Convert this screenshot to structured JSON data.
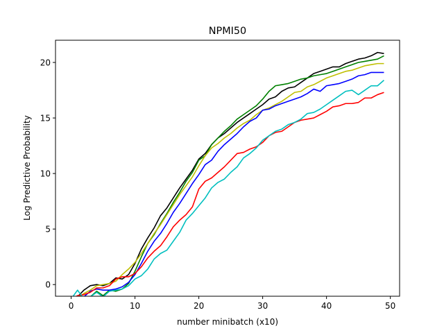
{
  "chart_data": {
    "type": "line",
    "title": "NPMI50",
    "xlabel": "number minibatch (x10)",
    "ylabel": "Log Predictive Probability",
    "xlim": [
      -2.45,
      51.45
    ],
    "ylim": [
      -1.05,
      22.0
    ],
    "xticks": [
      0,
      10,
      20,
      30,
      40,
      50
    ],
    "yticks": [
      0,
      5,
      10,
      15,
      20
    ],
    "grid": false,
    "legend": "none",
    "x": [
      0,
      1,
      2,
      3,
      4,
      5,
      6,
      7,
      8,
      9,
      10,
      11,
      12,
      13,
      14,
      15,
      16,
      17,
      18,
      19,
      20,
      21,
      22,
      23,
      24,
      25,
      26,
      27,
      28,
      29,
      30,
      31,
      32,
      33,
      34,
      35,
      36,
      37,
      38,
      39,
      40,
      41,
      42,
      43,
      44,
      45,
      46,
      47,
      48,
      49
    ],
    "series": [
      {
        "color": "#000000",
        "values": [
          -1.3,
          -1.1,
          -0.5,
          -0.1,
          0.0,
          -0.1,
          0.1,
          0.6,
          0.5,
          0.9,
          1.9,
          3.2,
          4.2,
          5.1,
          6.2,
          6.9,
          7.8,
          8.7,
          9.5,
          10.3,
          11.3,
          11.8,
          12.6,
          13.2,
          13.6,
          14.1,
          14.6,
          15.0,
          15.4,
          15.8,
          16.2,
          16.7,
          16.9,
          17.4,
          17.7,
          17.8,
          18.2,
          18.6,
          19.0,
          19.2,
          19.4,
          19.6,
          19.6,
          19.9,
          20.1,
          20.3,
          20.4,
          20.6,
          20.9,
          20.8
        ]
      },
      {
        "color": "#008000",
        "values": [
          -1.2,
          -1.3,
          -1.2,
          -1.1,
          -0.6,
          -1.0,
          -0.5,
          -0.6,
          -0.4,
          0.1,
          1.2,
          2.5,
          3.7,
          4.5,
          5.5,
          6.4,
          7.4,
          8.3,
          9.3,
          10.1,
          11.2,
          11.6,
          12.6,
          13.2,
          13.8,
          14.3,
          14.9,
          15.3,
          15.7,
          16.1,
          16.7,
          17.4,
          17.9,
          18.0,
          18.1,
          18.3,
          18.5,
          18.6,
          18.8,
          18.9,
          19.0,
          19.2,
          19.4,
          19.6,
          19.8,
          20.0,
          20.1,
          20.2,
          20.3,
          20.6
        ]
      },
      {
        "color": "#bfbf00",
        "values": [
          -1.3,
          -1.2,
          -0.8,
          -0.5,
          -0.1,
          0.0,
          0.1,
          0.3,
          0.9,
          1.4,
          2.0,
          2.8,
          3.7,
          4.6,
          5.4,
          6.3,
          7.2,
          8.1,
          8.9,
          9.7,
          10.7,
          11.6,
          12.3,
          12.7,
          13.2,
          13.6,
          14.1,
          14.5,
          14.8,
          15.3,
          15.7,
          15.9,
          16.2,
          16.5,
          16.9,
          17.3,
          17.4,
          17.8,
          18.0,
          18.3,
          18.6,
          18.8,
          19.0,
          19.2,
          19.3,
          19.5,
          19.7,
          19.8,
          19.9,
          19.9
        ]
      },
      {
        "color": "#0000ff",
        "values": [
          -1.3,
          -1.3,
          -1.1,
          -0.6,
          -0.4,
          -0.5,
          -0.5,
          -0.4,
          -0.2,
          0.2,
          0.9,
          1.9,
          3.0,
          3.9,
          4.6,
          5.5,
          6.5,
          7.3,
          8.2,
          9.1,
          9.9,
          10.8,
          11.2,
          12.0,
          12.6,
          13.1,
          13.6,
          14.2,
          14.7,
          15.0,
          15.7,
          15.8,
          16.1,
          16.3,
          16.5,
          16.7,
          16.9,
          17.2,
          17.6,
          17.4,
          17.9,
          18.0,
          18.1,
          18.3,
          18.5,
          18.8,
          18.9,
          19.1,
          19.1,
          19.1
        ]
      },
      {
        "color": "#ff0000",
        "values": [
          -1.3,
          -1.0,
          -0.9,
          -0.7,
          -0.3,
          -0.3,
          -0.1,
          0.5,
          0.7,
          0.7,
          1.0,
          1.6,
          2.4,
          3.0,
          3.5,
          4.3,
          5.2,
          5.8,
          6.3,
          7.0,
          8.6,
          9.3,
          9.6,
          10.1,
          10.6,
          11.2,
          11.8,
          11.9,
          12.2,
          12.4,
          12.8,
          13.4,
          13.7,
          13.8,
          14.2,
          14.6,
          14.8,
          14.9,
          15.0,
          15.3,
          15.6,
          16.0,
          16.1,
          16.3,
          16.3,
          16.4,
          16.8,
          16.8,
          17.1,
          17.3
        ]
      },
      {
        "color": "#00bfbf",
        "values": [
          -1.3,
          -0.5,
          -1.3,
          -1.1,
          -0.7,
          -1.1,
          -0.6,
          -0.5,
          -0.4,
          -0.1,
          0.5,
          0.8,
          1.4,
          2.3,
          2.8,
          3.1,
          3.9,
          4.7,
          5.8,
          6.4,
          7.1,
          7.8,
          8.7,
          9.2,
          9.5,
          10.1,
          10.6,
          11.4,
          11.8,
          12.3,
          13.0,
          13.4,
          13.8,
          14.0,
          14.4,
          14.6,
          14.9,
          15.4,
          15.5,
          15.8,
          16.2,
          16.6,
          17.0,
          17.4,
          17.5,
          17.1,
          17.5,
          17.9,
          17.9,
          18.4
        ]
      }
    ]
  }
}
